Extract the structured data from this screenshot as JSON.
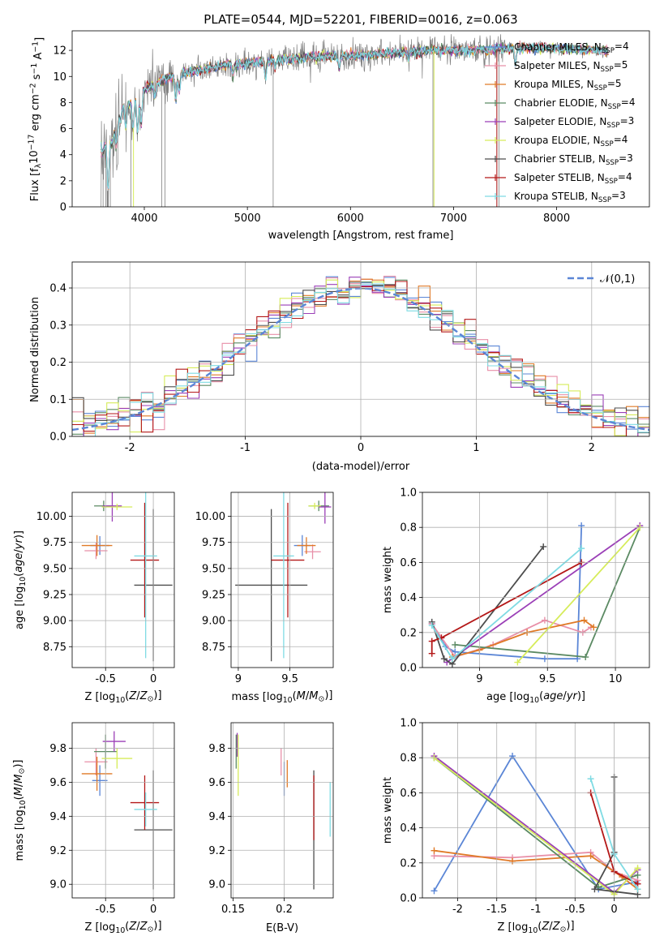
{
  "colors": {
    "Chabrier MILES": "#5b86d6",
    "Salpeter MILES": "#e88fa8",
    "Kroupa MILES": "#e07a27",
    "Chabrier ELODIE": "#5b8a63",
    "Salpeter ELODIE": "#9b3fb7",
    "Kroupa ELODIE": "#d6ec5a",
    "Chabrier STELIB": "#4d4d4d",
    "Salpeter STELIB": "#b41818",
    "Kroupa STELIB": "#7fdbe3",
    "data": "#808080",
    "normal": "#5b86d6"
  },
  "chart_data": [
    {
      "id": "spectrum",
      "type": "line",
      "title": "PLATE=0544, MJD=52201, FIBERID=0016, z=0.063",
      "xlabel": "wavelength [Angstrom, rest frame]",
      "ylabel": "Flux [f_λ 10^-17 erg cm^-2 s^-1 A^-1]",
      "xlim": [
        3300,
        8900
      ],
      "ylim": [
        0,
        13.5
      ],
      "xticks": [
        4000,
        5000,
        6000,
        7000,
        8000
      ],
      "yticks": [
        0,
        2,
        4,
        6,
        8,
        10,
        12
      ],
      "grid": false,
      "legend_position": "right",
      "continuum": {
        "x": [
          3580,
          3700,
          3800,
          3900,
          4000,
          4200,
          4400,
          4600,
          4800,
          5000,
          5200,
          5400,
          5600,
          5800,
          6000,
          6200,
          6400,
          6600,
          6800,
          7000,
          7200,
          7400,
          7600,
          7800,
          8000,
          8200,
          8400,
          8600
        ],
        "y": [
          4.2,
          5.2,
          7.6,
          8.2,
          9.0,
          9.8,
          10.3,
          10.6,
          10.9,
          11.0,
          11.2,
          11.3,
          11.5,
          11.6,
          11.6,
          11.7,
          11.8,
          11.9,
          12.0,
          12.0,
          12.0,
          12.1,
          12.2,
          12.2,
          12.1,
          12.1,
          12.0,
          11.9
        ]
      },
      "series": [
        {
          "name": "Chabrier MILES",
          "label": "Chabrier MILES, N",
          "sub": "SSP",
          "eq": "=4"
        },
        {
          "name": "Salpeter MILES",
          "label": "Salpeter MILES, N",
          "sub": "SSP",
          "eq": "=5"
        },
        {
          "name": "Kroupa MILES",
          "label": "Kroupa MILES, N",
          "sub": "SSP",
          "eq": "=5"
        },
        {
          "name": "Chabrier ELODIE",
          "label": "Chabrier ELODIE, N",
          "sub": "SSP",
          "eq": "=4"
        },
        {
          "name": "Salpeter ELODIE",
          "label": "Salpeter ELODIE, N",
          "sub": "SSP",
          "eq": "=3"
        },
        {
          "name": "Kroupa ELODIE",
          "label": "Kroupa ELODIE, N",
          "sub": "SSP",
          "eq": "=4"
        },
        {
          "name": "Chabrier STELIB",
          "label": "Chabrier STELIB, N",
          "sub": "SSP",
          "eq": "=3"
        },
        {
          "name": "Salpeter STELIB",
          "label": "Salpeter STELIB, N",
          "sub": "SSP",
          "eq": "=4"
        },
        {
          "name": "Kroupa STELIB",
          "label": "Kroupa STELIB, N",
          "sub": "SSP",
          "eq": "=3"
        }
      ]
    },
    {
      "id": "residuals",
      "type": "line",
      "xlabel": "(data-model)/error",
      "ylabel": "Normed distribution",
      "xlim": [
        -2.5,
        2.5
      ],
      "ylim": [
        0,
        0.47
      ],
      "xticks": [
        -2,
        -1,
        0,
        1,
        2
      ],
      "yticks": [
        0.0,
        0.1,
        0.2,
        0.3,
        0.4
      ],
      "grid": true,
      "legend_position": "top-right",
      "legend": "𝒩(0,1)",
      "bins": 50
    },
    {
      "id": "age_vs_Z",
      "type": "scatter",
      "xlabel": "Z [log10(Z/Z⊙)]",
      "ylabel": "age [log10(age/yr)]",
      "xlim": [
        -0.85,
        0.22
      ],
      "ylim": [
        8.55,
        10.23
      ],
      "xticks": [
        -0.5,
        0.0
      ],
      "yticks": [
        8.75,
        9.0,
        9.25,
        9.5,
        9.75,
        10.0
      ],
      "points": [
        {
          "series": "Chabrier MILES",
          "x": -0.56,
          "y": 9.72,
          "xerr": 0.1,
          "yerr": 0.09
        },
        {
          "series": "Salpeter MILES",
          "x": -0.6,
          "y": 9.67,
          "xerr": 0.12,
          "yerr": 0.08
        },
        {
          "series": "Kroupa MILES",
          "x": -0.59,
          "y": 9.72,
          "xerr": 0.16,
          "yerr": 0.1
        },
        {
          "series": "Chabrier ELODIE",
          "x": -0.52,
          "y": 10.1,
          "xerr": 0.1,
          "yerr": 0.05
        },
        {
          "series": "Salpeter ELODIE",
          "x": -0.43,
          "y": 10.1,
          "xerr": 0.1,
          "yerr": 0.15
        },
        {
          "series": "Kroupa ELODIE",
          "x": -0.38,
          "y": 10.09,
          "xerr": 0.16,
          "yerr": 0.03
        },
        {
          "series": "Chabrier STELIB",
          "x": 0.0,
          "y": 9.34,
          "xerr": 0.2,
          "yerr": 0.73
        },
        {
          "series": "Salpeter STELIB",
          "x": -0.09,
          "y": 9.58,
          "xerr": 0.15,
          "yerr": 0.55
        },
        {
          "series": "Kroupa STELIB",
          "x": -0.08,
          "y": 9.62,
          "xerr": 0.12,
          "yerr": 0.98
        }
      ]
    },
    {
      "id": "age_vs_mass",
      "type": "scatter",
      "xlabel": "mass [log10(M/M⊙)]",
      "ylabel": "",
      "xlim": [
        8.93,
        9.92
      ],
      "ylim": [
        8.55,
        10.23
      ],
      "xticks": [
        9.0,
        9.5
      ],
      "yticks": [
        8.75,
        9.0,
        9.25,
        9.5,
        9.75,
        10.0
      ],
      "points": [
        {
          "series": "Chabrier MILES",
          "x": 9.62,
          "y": 9.72,
          "xerr": 0.08,
          "yerr": 0.1
        },
        {
          "series": "Salpeter MILES",
          "x": 9.72,
          "y": 9.66,
          "xerr": 0.08,
          "yerr": 0.07
        },
        {
          "series": "Kroupa MILES",
          "x": 9.66,
          "y": 9.72,
          "xerr": 0.09,
          "yerr": 0.08
        },
        {
          "series": "Chabrier ELODIE",
          "x": 9.78,
          "y": 10.1,
          "xerr": 0.1,
          "yerr": 0.05
        },
        {
          "series": "Salpeter ELODIE",
          "x": 9.84,
          "y": 10.09,
          "xerr": 0.06,
          "yerr": 0.16
        },
        {
          "series": "Kroupa ELODIE",
          "x": 9.74,
          "y": 10.1,
          "xerr": 0.06,
          "yerr": 0.03
        },
        {
          "series": "Chabrier STELIB",
          "x": 9.32,
          "y": 9.34,
          "xerr": 0.35,
          "yerr": 0.73
        },
        {
          "series": "Salpeter STELIB",
          "x": 9.48,
          "y": 9.58,
          "xerr": 0.16,
          "yerr": 0.55
        },
        {
          "series": "Kroupa STELIB",
          "x": 9.44,
          "y": 9.62,
          "xerr": 0.1,
          "yerr": 0.98
        }
      ]
    },
    {
      "id": "weight_vs_age",
      "type": "line",
      "xlabel": "age [log10(age/yr)]",
      "ylabel": "mass weight",
      "xlim": [
        8.58,
        10.25
      ],
      "ylim": [
        0,
        1.0
      ],
      "xticks": [
        9.0,
        9.5,
        10.0
      ],
      "yticks": [
        0.0,
        0.2,
        0.4,
        0.6,
        0.8,
        1.0
      ],
      "series": [
        {
          "name": "Chabrier MILES",
          "x": [
            8.65,
            8.75,
            8.82,
            9.48,
            9.72,
            9.75
          ],
          "y": [
            0.25,
            0.12,
            0.09,
            0.05,
            0.05,
            0.81
          ]
        },
        {
          "name": "Salpeter MILES",
          "x": [
            8.65,
            8.82,
            9.1,
            9.48,
            9.76,
            9.82
          ],
          "y": [
            0.25,
            0.06,
            0.13,
            0.27,
            0.2,
            0.23
          ]
        },
        {
          "name": "Kroupa MILES",
          "x": [
            8.8,
            9.0,
            9.35,
            9.77,
            9.84
          ],
          "y": [
            0.06,
            0.1,
            0.2,
            0.27,
            0.23
          ]
        },
        {
          "name": "Chabrier ELODIE",
          "x": [
            8.82,
            9.78,
            10.18
          ],
          "y": [
            0.13,
            0.06,
            0.8
          ]
        },
        {
          "name": "Salpeter ELODIE",
          "x": [
            8.76,
            10.18
          ],
          "y": [
            0.03,
            0.81
          ]
        },
        {
          "name": "Kroupa ELODIE",
          "x": [
            9.28,
            10.18
          ],
          "y": [
            0.03,
            0.8
          ]
        },
        {
          "name": "Chabrier STELIB",
          "x": [
            8.65,
            8.74,
            8.8,
            9.47
          ],
          "y": [
            0.26,
            0.05,
            0.02,
            0.69
          ]
        },
        {
          "name": "Salpeter STELIB",
          "x": [
            8.65,
            8.65,
            8.72,
            9.75
          ],
          "y": [
            0.08,
            0.15,
            0.17,
            0.6
          ]
        },
        {
          "name": "Kroupa STELIB",
          "x": [
            8.65,
            8.8,
            9.75
          ],
          "y": [
            0.24,
            0.05,
            0.68
          ]
        }
      ]
    },
    {
      "id": "mass_vs_Z",
      "type": "scatter",
      "xlabel": "Z [log10(Z/Z⊙)]",
      "ylabel": "mass [log10(M/M⊙)]",
      "xlim": [
        -0.85,
        0.22
      ],
      "ylim": [
        8.92,
        9.95
      ],
      "xticks": [
        -0.5,
        0.0
      ],
      "yticks": [
        9.0,
        9.2,
        9.4,
        9.6,
        9.8
      ],
      "points": [
        {
          "series": "Chabrier MILES",
          "x": -0.56,
          "y": 9.61,
          "xerr": 0.08,
          "yerr": 0.09
        },
        {
          "series": "Salpeter MILES",
          "x": -0.6,
          "y": 9.72,
          "xerr": 0.12,
          "yerr": 0.08
        },
        {
          "series": "Kroupa MILES",
          "x": -0.59,
          "y": 9.65,
          "xerr": 0.16,
          "yerr": 0.1
        },
        {
          "series": "Chabrier ELODIE",
          "x": -0.5,
          "y": 9.78,
          "xerr": 0.12,
          "yerr": 0.1
        },
        {
          "series": "Salpeter ELODIE",
          "x": -0.41,
          "y": 9.84,
          "xerr": 0.12,
          "yerr": 0.06
        },
        {
          "series": "Kroupa ELODIE",
          "x": -0.38,
          "y": 9.74,
          "xerr": 0.16,
          "yerr": 0.06
        },
        {
          "series": "Chabrier STELIB",
          "x": 0.0,
          "y": 9.32,
          "xerr": 0.2,
          "yerr": 0.35
        },
        {
          "series": "Salpeter STELIB",
          "x": -0.09,
          "y": 9.48,
          "xerr": 0.15,
          "yerr": 0.16
        },
        {
          "series": "Kroupa STELIB",
          "x": -0.08,
          "y": 9.44,
          "xerr": 0.12,
          "yerr": 0.1
        }
      ]
    },
    {
      "id": "mass_vs_EBV",
      "type": "scatter",
      "xlabel": "E(B-V)",
      "ylabel": "",
      "xlim": [
        0.148,
        0.248
      ],
      "ylim": [
        8.92,
        9.95
      ],
      "xticks": [
        0.15,
        0.2
      ],
      "yticks": [
        9.0,
        9.2,
        9.4,
        9.6,
        9.8
      ],
      "points": [
        {
          "series": "Chabrier MILES",
          "x": 0.2,
          "y": 9.62,
          "yerr": 0.1
        },
        {
          "series": "Salpeter MILES",
          "x": 0.197,
          "y": 9.72,
          "yerr": 0.08
        },
        {
          "series": "Kroupa MILES",
          "x": 0.203,
          "y": 9.65,
          "yerr": 0.08
        },
        {
          "series": "Chabrier ELODIE",
          "x": 0.153,
          "y": 9.78,
          "yerr": 0.1
        },
        {
          "series": "Salpeter ELODIE",
          "x": 0.154,
          "y": 9.82,
          "yerr": 0.07
        },
        {
          "series": "Kroupa ELODIE",
          "x": 0.155,
          "y": 9.7,
          "yerr": 0.18
        },
        {
          "series": "Chabrier STELIB",
          "x": 0.229,
          "y": 9.32,
          "yerr": 0.35
        },
        {
          "series": "Salpeter STELIB",
          "x": 0.229,
          "y": 9.45,
          "yerr": 0.19
        },
        {
          "series": "Kroupa STELIB",
          "x": 0.245,
          "y": 9.44,
          "yerr": 0.16
        }
      ]
    },
    {
      "id": "weight_vs_Z",
      "type": "line",
      "xlabel": "Z [log10(Z/Z⊙)]",
      "ylabel": "mass weight",
      "xlim": [
        -2.45,
        0.45
      ],
      "ylim": [
        0,
        1.0
      ],
      "xticks": [
        -2.0,
        -1.5,
        -1.0,
        -0.5,
        0.0
      ],
      "yticks": [
        0.0,
        0.2,
        0.4,
        0.6,
        0.8,
        1.0
      ],
      "series": [
        {
          "name": "Chabrier MILES",
          "x": [
            -2.3,
            -1.3,
            -0.2,
            0.28,
            0.3
          ],
          "y": [
            0.04,
            0.81,
            0.05,
            0.09,
            0.08
          ]
        },
        {
          "name": "Salpeter MILES",
          "x": [
            -2.3,
            -1.3,
            -0.3,
            0.0,
            0.3
          ],
          "y": [
            0.24,
            0.23,
            0.26,
            0.15,
            0.1
          ]
        },
        {
          "name": "Kroupa MILES",
          "x": [
            -2.3,
            -1.3,
            -0.3,
            0.1,
            0.3
          ],
          "y": [
            0.27,
            0.21,
            0.24,
            0.12,
            0.05
          ]
        },
        {
          "name": "Chabrier ELODIE",
          "x": [
            -2.3,
            -0.2,
            0.3
          ],
          "y": [
            0.8,
            0.06,
            0.13
          ]
        },
        {
          "name": "Salpeter ELODIE",
          "x": [
            -2.3,
            0.0,
            0.3
          ],
          "y": [
            0.81,
            0.03,
            0.16
          ]
        },
        {
          "name": "Kroupa ELODIE",
          "x": [
            -2.3,
            0.0,
            0.3
          ],
          "y": [
            0.8,
            0.02,
            0.17
          ]
        },
        {
          "name": "Chabrier STELIB",
          "x": [
            0.0,
            0.0,
            -0.25,
            0.3
          ],
          "y": [
            0.69,
            0.26,
            0.05,
            0.02
          ]
        },
        {
          "name": "Salpeter STELIB",
          "x": [
            -0.3,
            0.0,
            0.3
          ],
          "y": [
            0.6,
            0.15,
            0.08
          ]
        },
        {
          "name": "Kroupa STELIB",
          "x": [
            -0.3,
            0.0,
            0.3
          ],
          "y": [
            0.68,
            0.25,
            0.05
          ]
        }
      ]
    }
  ]
}
